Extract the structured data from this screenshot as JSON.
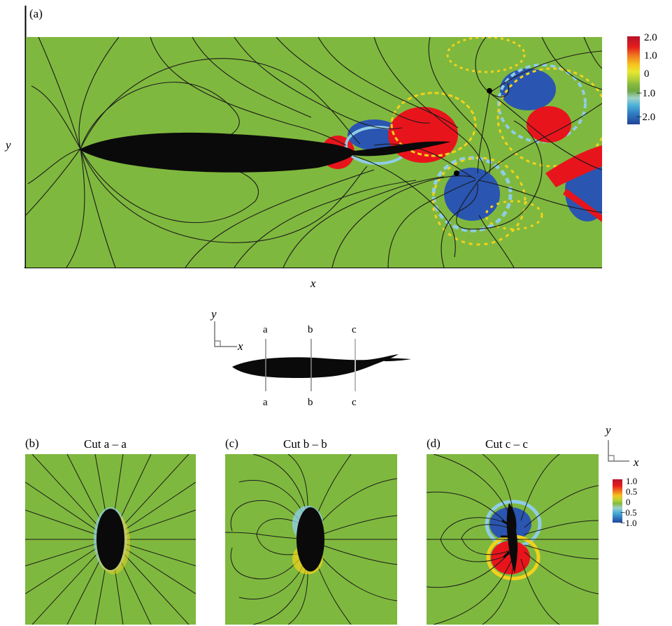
{
  "panel_a": {
    "label": "(a)",
    "x_axis_label": "x",
    "y_axis_label": "y",
    "colorbar": {
      "ticks": [
        "2.0",
        "1.0",
        "0",
        "−1.0",
        "−2.0"
      ],
      "colors": [
        "#b8122a",
        "#e41c1c",
        "#f07a1e",
        "#f6c320",
        "#e9e630",
        "#b8d238",
        "#83b940",
        "#6fa742",
        "#9fd2c8",
        "#4fb3d9",
        "#2f7cc0",
        "#21439a"
      ]
    }
  },
  "schematic": {
    "y_label": "y",
    "x_label": "x",
    "cut_labels_top": [
      "a",
      "b",
      "c"
    ],
    "cut_labels_bottom": [
      "a",
      "b",
      "c"
    ]
  },
  "panel_b": {
    "label": "(b)",
    "title": "Cut a – a"
  },
  "panel_c": {
    "label": "(c)",
    "title": "Cut b – b"
  },
  "panel_d": {
    "label": "(d)",
    "title": "Cut c – c"
  },
  "cut_colorbar": {
    "y_label": "y",
    "x_label": "x",
    "ticks": [
      "1.0",
      "0.5",
      "0",
      "−0.5",
      "−1.0"
    ]
  },
  "colors": {
    "field_green": "#7fb83e",
    "body_black": "#0a0a0a",
    "streamline": "#1a1a1a",
    "positive_red": "#e8141c",
    "negative_blue": "#2a55b0",
    "yellow": "#f2d21c",
    "light_blue": "#8fcde6"
  }
}
